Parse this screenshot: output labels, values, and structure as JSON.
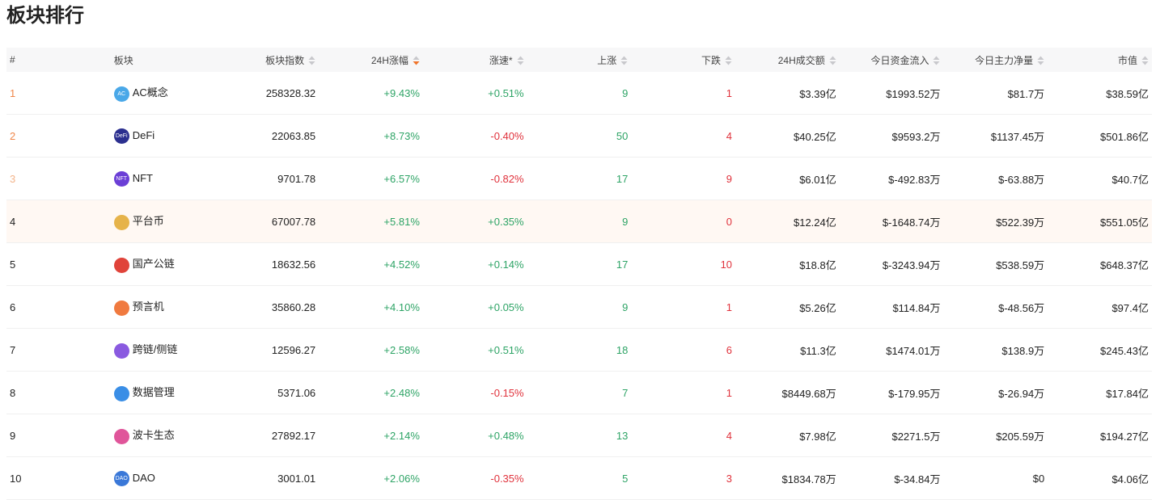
{
  "title": "板块排行",
  "table": {
    "columns": [
      "#",
      "板块",
      "板块指数",
      "24H涨幅",
      "涨速*",
      "上涨",
      "下跌",
      "24H成交额",
      "今日资金流入",
      "今日主力净量",
      "市值"
    ],
    "rows": [
      {
        "icon": "AC",
        "cells": [
          "1",
          "AC概念",
          "258328.32",
          "+9.43%",
          "+0.51%",
          "9",
          "1",
          "$3.39亿",
          "$1993.52万",
          "$81.7万",
          "$38.59亿"
        ]
      },
      {
        "icon": "DeFi",
        "cells": [
          "2",
          "DeFi",
          "22063.85",
          "+8.73%",
          "-0.40%",
          "50",
          "4",
          "$40.25亿",
          "$9593.2万",
          "$1137.45万",
          "$501.86亿"
        ]
      },
      {
        "icon": "NFT",
        "cells": [
          "3",
          "NFT",
          "9701.78",
          "+6.57%",
          "-0.82%",
          "17",
          "9",
          "$6.01亿",
          "$-492.83万",
          "$-63.88万",
          "$40.7亿"
        ]
      },
      {
        "cells": [
          "4",
          "平台币",
          "67007.78",
          "+5.81%",
          "+0.35%",
          "9",
          "0",
          "$12.24亿",
          "$-1648.74万",
          "$522.39万",
          "$551.05亿"
        ]
      },
      {
        "cells": [
          "5",
          "国产公链",
          "18632.56",
          "+4.52%",
          "+0.14%",
          "17",
          "10",
          "$18.8亿",
          "$-3243.94万",
          "$538.59万",
          "$648.37亿"
        ]
      },
      {
        "cells": [
          "6",
          "预言机",
          "35860.28",
          "+4.10%",
          "+0.05%",
          "9",
          "1",
          "$5.26亿",
          "$114.84万",
          "$-48.56万",
          "$97.4亿"
        ]
      },
      {
        "cells": [
          "7",
          "跨链/侧链",
          "12596.27",
          "+2.58%",
          "+0.51%",
          "18",
          "6",
          "$11.3亿",
          "$1474.01万",
          "$138.9万",
          "$245.43亿"
        ]
      },
      {
        "cells": [
          "8",
          "数据管理",
          "5371.06",
          "+2.48%",
          "-0.15%",
          "7",
          "1",
          "$8449.68万",
          "$-179.95万",
          "$-26.94万",
          "$17.84亿"
        ]
      },
      {
        "cells": [
          "9",
          "波卡生态",
          "27892.17",
          "+2.14%",
          "+0.48%",
          "13",
          "4",
          "$7.98亿",
          "$2271.5万",
          "$205.59万",
          "$194.27亿"
        ]
      },
      {
        "icon": "DAO",
        "cells": [
          "10",
          "DAO",
          "3001.01",
          "+2.06%",
          "-0.35%",
          "5",
          "3",
          "$1834.78万",
          "$-34.84万",
          "$0",
          "$4.06亿"
        ]
      }
    ]
  }
}
